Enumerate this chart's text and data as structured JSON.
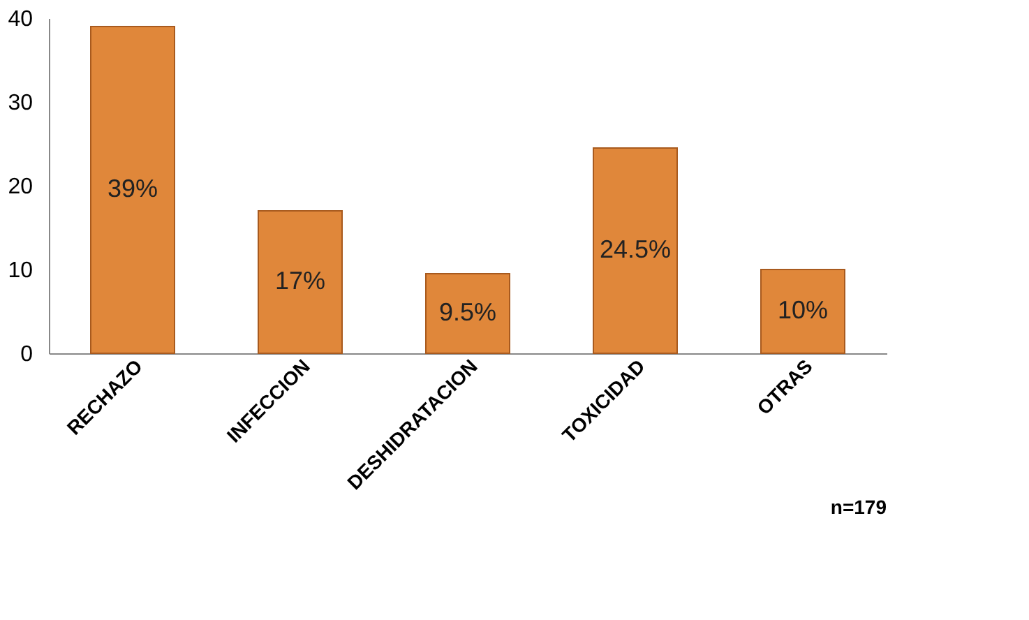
{
  "chart_data": {
    "type": "bar",
    "categories": [
      "RECHAZO",
      "INFECCION",
      "DESHIDRATACION",
      "TOXICIDAD",
      "OTRAS"
    ],
    "values": [
      39,
      17,
      9.5,
      24.5,
      10
    ],
    "value_labels": [
      "39%",
      "17%",
      "9.5%",
      "24.5%",
      "10%"
    ],
    "color": "#e0873a",
    "ylim": [
      0,
      40
    ],
    "yticks": [
      0,
      10,
      20,
      30,
      40
    ],
    "grid": false,
    "annotations": [
      "n=179"
    ]
  }
}
